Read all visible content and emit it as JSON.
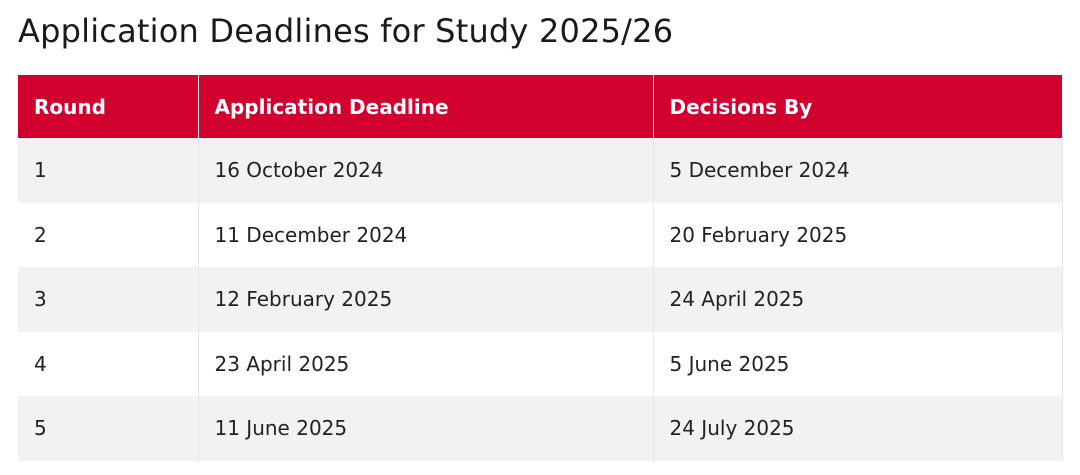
{
  "title": "Application Deadlines for Study 2025/26",
  "table": {
    "header": [
      "Round",
      "Application Deadline",
      "Decisions By"
    ],
    "rows": [
      [
        "1",
        "16 October 2024",
        "5 December 2024"
      ],
      [
        "2",
        "11 December 2024",
        "20 February 2025"
      ],
      [
        "3",
        "12 February 2025",
        "24 April 2025"
      ],
      [
        "4",
        "23 April 2025",
        "5 June 2025"
      ],
      [
        "5",
        "11 June 2025",
        "24 July 2025"
      ]
    ]
  }
}
